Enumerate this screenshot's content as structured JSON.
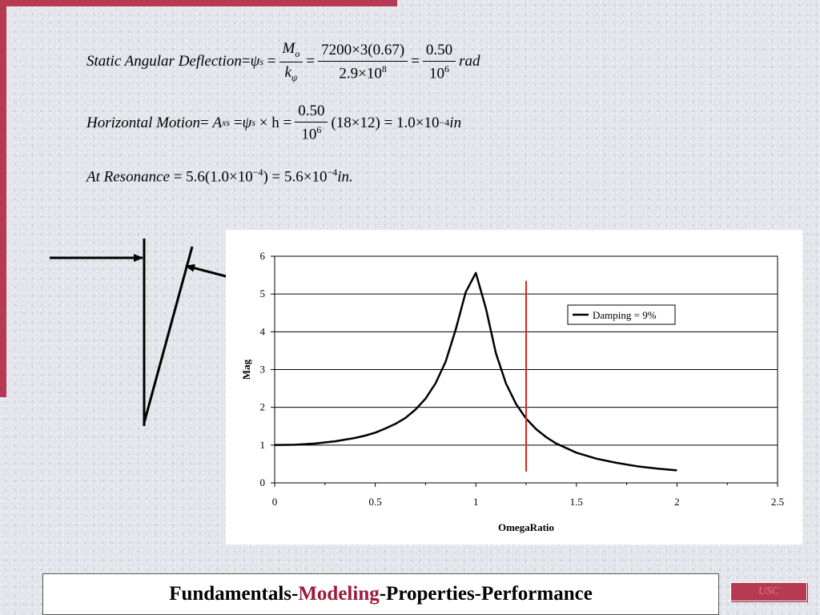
{
  "colors": {
    "accent": "#b53a52",
    "footer_highlight": "#9b1b3a",
    "marker": "#e02020"
  },
  "equations": {
    "static": {
      "lhs": "Static Angular Deflection",
      "eq1": "=",
      "psi": "ψ",
      "psi_sub": "s",
      "eq2": "=",
      "f1_num": "M",
      "f1_num_sub": "o",
      "f1_den": "k",
      "f1_den_sub": "ψ",
      "eq3": "=",
      "f2_num": "7200×3(0.67)",
      "f2_den": "2.9×10",
      "f2_den_exp": "8",
      "eq4": "=",
      "f3_num": "0.50",
      "f3_den": "10",
      "f3_den_exp": "6",
      "unit": "rad"
    },
    "horizontal": {
      "lhs": "Horizontal Motion",
      "eq1": "=",
      "a": "A",
      "a_sub": "xs",
      "eq2": "=",
      "psi": "ψ",
      "psi_sub": "s",
      "times_h": "× h =",
      "f_num": "0.50",
      "f_den": "10",
      "f_den_exp": "6",
      "tail": "(18×12) = 1.0×10",
      "tail_exp": "−4",
      "unit": "in"
    },
    "resonance": {
      "lhs": "At Resonance",
      "body": "= 5.6(1.0×10",
      "exp1": "−4",
      "body2": ") = 5.6×10",
      "exp2": "−4",
      "unit": "in."
    }
  },
  "chart_data": {
    "type": "line",
    "xlabel": "OmegaRatio",
    "ylabel": "Mag",
    "xlim": [
      0,
      2.5
    ],
    "ylim": [
      0,
      6
    ],
    "xticks": [
      "0",
      "0.5",
      "1",
      "1.5",
      "2",
      "2.5"
    ],
    "yticks": [
      "0",
      "1",
      "2",
      "3",
      "4",
      "5",
      "6"
    ],
    "grid": "horizontal",
    "legend_position": "right",
    "series": [
      {
        "name": "Damping = 9%",
        "x": [
          0,
          0.1,
          0.2,
          0.3,
          0.4,
          0.45,
          0.5,
          0.55,
          0.6,
          0.65,
          0.7,
          0.75,
          0.8,
          0.85,
          0.9,
          0.95,
          1.0,
          1.05,
          1.1,
          1.15,
          1.2,
          1.25,
          1.3,
          1.35,
          1.4,
          1.5,
          1.6,
          1.7,
          1.8,
          1.9,
          2.0
        ],
        "y": [
          1.0,
          1.01,
          1.04,
          1.1,
          1.19,
          1.25,
          1.33,
          1.44,
          1.56,
          1.72,
          1.94,
          2.23,
          2.64,
          3.21,
          4.06,
          5.05,
          5.56,
          4.62,
          3.43,
          2.63,
          2.09,
          1.7,
          1.42,
          1.21,
          1.04,
          0.8,
          0.64,
          0.53,
          0.44,
          0.38,
          0.33
        ]
      }
    ],
    "marker_line": {
      "x": 1.25,
      "y_from": 0.3,
      "y_to": 5.35
    }
  },
  "footer": {
    "prefix": "Fundamentals-",
    "highlight": "Modeling",
    "suffix": "-Properties-Performance"
  },
  "badge": {
    "text": "USC"
  }
}
